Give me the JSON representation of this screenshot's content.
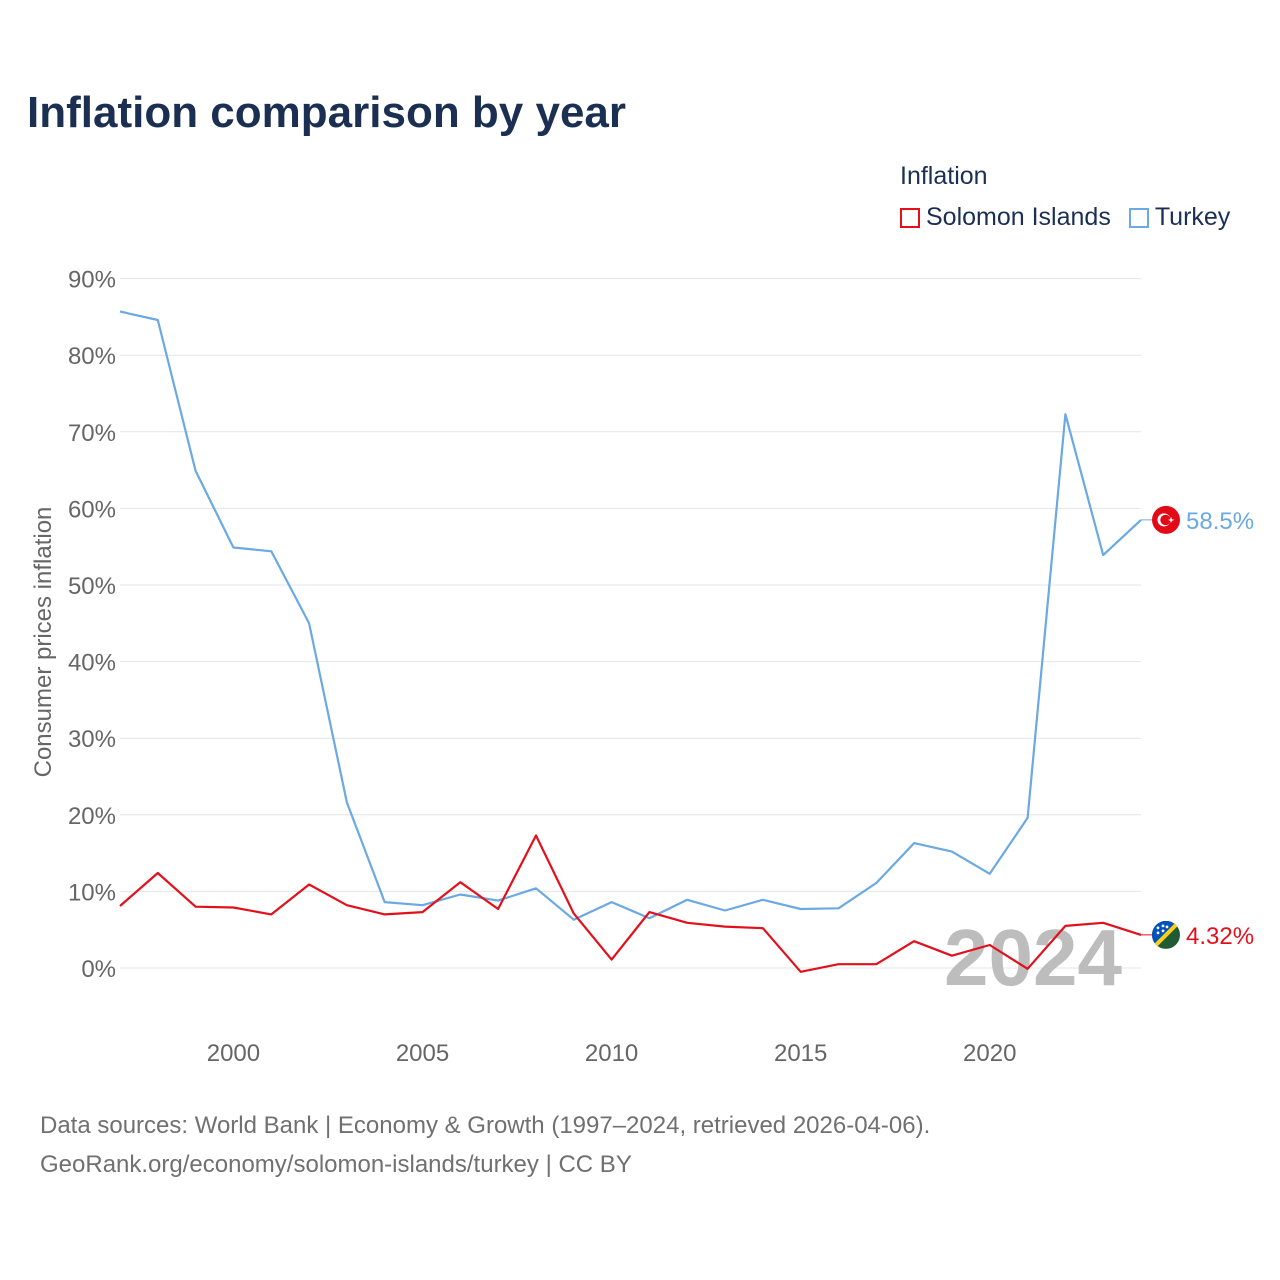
{
  "title": "Inflation comparison by year",
  "legend": {
    "title": "Inflation",
    "items": [
      {
        "label": "Solomon Islands",
        "color": "#e3101b"
      },
      {
        "label": "Turkey",
        "color": "#6aa9e3"
      }
    ]
  },
  "footer": {
    "line1": "Data sources: World Bank | Economy & Growth (1997–2024, retrieved 2026-04-06).",
    "line2": "GeoRank.org/economy/solomon-islands/turkey | CC BY"
  },
  "chart_data": {
    "type": "line",
    "title": "Inflation comparison by year",
    "xlabel": "",
    "ylabel": "Consumer prices inflation",
    "xlim": [
      1997,
      2024
    ],
    "ylim": [
      -8,
      92
    ],
    "y_ticks": [
      0,
      10,
      20,
      30,
      40,
      50,
      60,
      70,
      80,
      90
    ],
    "y_tick_labels": [
      "0%",
      "10%",
      "20%",
      "30%",
      "40%",
      "50%",
      "60%",
      "70%",
      "80%",
      "90%"
    ],
    "x_ticks": [
      2000,
      2005,
      2010,
      2015,
      2020
    ],
    "x_tick_labels": [
      "2000",
      "2005",
      "2010",
      "2015",
      "2020"
    ],
    "grid": true,
    "year_watermark": "2024",
    "x": [
      1997,
      1998,
      1999,
      2000,
      2001,
      2002,
      2003,
      2004,
      2005,
      2006,
      2007,
      2008,
      2009,
      2010,
      2011,
      2012,
      2013,
      2014,
      2015,
      2016,
      2017,
      2018,
      2019,
      2020,
      2021,
      2022,
      2023,
      2024
    ],
    "series": [
      {
        "name": "Turkey",
        "color": "#6aa9e3",
        "end_label": "58.5%",
        "flag_icon": "turkey-flag-icon",
        "values": [
          85.7,
          84.6,
          64.9,
          54.9,
          54.4,
          45.0,
          21.6,
          8.6,
          8.2,
          9.6,
          8.8,
          10.4,
          6.3,
          8.6,
          6.5,
          8.9,
          7.5,
          8.9,
          7.7,
          7.8,
          11.1,
          16.3,
          15.2,
          12.3,
          19.6,
          72.3,
          53.9,
          58.5
        ]
      },
      {
        "name": "Solomon Islands",
        "color": "#e3101b",
        "end_label": "4.32%",
        "flag_icon": "solomon-islands-flag-icon",
        "values": [
          8.1,
          12.4,
          8.0,
          7.9,
          7.0,
          10.9,
          8.2,
          7.0,
          7.3,
          11.2,
          7.7,
          17.3,
          7.1,
          1.1,
          7.3,
          5.9,
          5.4,
          5.2,
          -0.5,
          0.5,
          0.5,
          3.5,
          1.6,
          3.0,
          -0.1,
          5.5,
          5.9,
          4.32
        ]
      }
    ]
  }
}
